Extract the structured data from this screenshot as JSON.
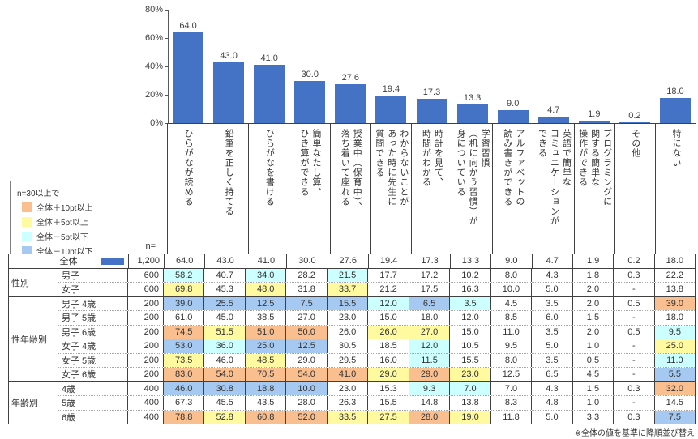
{
  "chart_data": {
    "type": "bar",
    "ylim": [
      0,
      80
    ],
    "ytick_labels_top_to_bottom": [
      "80%",
      "60%",
      "40%",
      "20%",
      "0%"
    ],
    "bar_color": "#4472C4",
    "grid": false,
    "categories": [
      "ひらがなが読める",
      "鉛筆を正しく持てる",
      "ひらがなを書ける",
      "簡単なたし算、\nひき算ができる",
      "授業中（保育中）、\n落ち着いて座れる",
      "わからないことが\nあった時に先生に\n質問できる",
      "時計を見て、\n時間がわかる",
      "学習習慣\n（机に向かう習慣）が\n身についている",
      "アルファベットの\n読み書きができる",
      "英語で簡単な\nコミュニケーションが\nできる",
      "プログラミングに\n関する簡単な\n操作ができる",
      "その他",
      "特にない"
    ],
    "values": [
      64.0,
      43.0,
      41.0,
      30.0,
      27.6,
      19.4,
      17.3,
      13.3,
      9.0,
      4.7,
      1.9,
      0.2,
      18.0
    ],
    "value_labels": [
      "64.0",
      "43.0",
      "41.0",
      "30.0",
      "27.6",
      "19.4",
      "17.3",
      "13.3",
      "9.0",
      "4.7",
      "1.9",
      "0.2",
      "18.0"
    ]
  },
  "legend": {
    "title": "n=30以上で",
    "items": [
      {
        "label": "全体＋10pt以上",
        "color": "#FABF8F",
        "code": "o"
      },
      {
        "label": "全体＋5pt以上",
        "color": "#FFF9A0",
        "code": "y"
      },
      {
        "label": "全体－5pt以下",
        "color": "#CCFFFF",
        "code": "c"
      },
      {
        "label": "全体－10pt以下",
        "color": "#A5C9F0",
        "code": "b"
      }
    ]
  },
  "highlight_colors": {
    "o": "#FABF8F",
    "y": "#FFF9A0",
    "c": "#CCFFFF",
    "b": "#A5C9F0"
  },
  "table": {
    "n_header": "n=",
    "groups": [
      {
        "label": "",
        "rows": [
          {
            "label": "全体",
            "n": "1,200",
            "swatch": true,
            "values": [
              "64.0",
              "43.0",
              "41.0",
              "30.0",
              "27.6",
              "19.4",
              "17.3",
              "13.3",
              "9.0",
              "4.7",
              "1.9",
              "0.2",
              "18.0"
            ],
            "hl": [
              "",
              "",
              "",
              "",
              "",
              "",
              "",
              "",
              "",
              "",
              "",
              "",
              ""
            ]
          }
        ]
      },
      {
        "label": "性別",
        "rows": [
          {
            "label": "男子",
            "n": "600",
            "values": [
              "58.2",
              "40.7",
              "34.0",
              "28.2",
              "21.5",
              "17.7",
              "17.2",
              "10.2",
              "8.0",
              "4.3",
              "1.8",
              "0.3",
              "22.2"
            ],
            "hl": [
              "c",
              "",
              "c",
              "",
              "c",
              "",
              "",
              "",
              "",
              "",
              "",
              "",
              ""
            ]
          },
          {
            "label": "女子",
            "n": "600",
            "values": [
              "69.8",
              "45.3",
              "48.0",
              "31.8",
              "33.7",
              "21.2",
              "17.5",
              "16.3",
              "10.0",
              "5.0",
              "2.0",
              "-",
              "13.8"
            ],
            "hl": [
              "y",
              "",
              "y",
              "",
              "y",
              "",
              "",
              "",
              "",
              "",
              "",
              "",
              ""
            ]
          }
        ]
      },
      {
        "label": "性年齢別",
        "rows": [
          {
            "label": "男子 4歳",
            "n": "200",
            "values": [
              "39.0",
              "25.5",
              "12.5",
              "7.5",
              "15.5",
              "12.0",
              "6.5",
              "3.5",
              "4.5",
              "3.5",
              "2.0",
              "0.5",
              "39.0"
            ],
            "hl": [
              "b",
              "b",
              "b",
              "b",
              "b",
              "c",
              "b",
              "c",
              "",
              "",
              "",
              "",
              "o"
            ]
          },
          {
            "label": "男子 5歳",
            "n": "200",
            "values": [
              "61.0",
              "45.0",
              "38.5",
              "27.0",
              "23.0",
              "15.0",
              "18.0",
              "12.0",
              "8.5",
              "6.0",
              "1.5",
              "-",
              "18.0"
            ],
            "hl": [
              "",
              "",
              "",
              "",
              "",
              "",
              "",
              "",
              "",
              "",
              "",
              "",
              ""
            ]
          },
          {
            "label": "男子 6歳",
            "n": "200",
            "values": [
              "74.5",
              "51.5",
              "51.0",
              "50.0",
              "26.0",
              "26.0",
              "27.0",
              "15.0",
              "11.0",
              "3.5",
              "2.0",
              "0.5",
              "9.5"
            ],
            "hl": [
              "o",
              "y",
              "o",
              "o",
              "",
              "y",
              "y",
              "",
              "",
              "",
              "",
              "",
              "c"
            ]
          },
          {
            "label": "女子 4歳",
            "n": "200",
            "values": [
              "53.0",
              "36.0",
              "25.0",
              "12.5",
              "30.5",
              "18.5",
              "12.0",
              "10.5",
              "9.5",
              "5.0",
              "1.0",
              "-",
              "25.0"
            ],
            "hl": [
              "b",
              "c",
              "b",
              "b",
              "",
              "",
              "c",
              "",
              "",
              "",
              "",
              "",
              "y"
            ]
          },
          {
            "label": "女子 5歳",
            "n": "200",
            "values": [
              "73.5",
              "46.0",
              "48.5",
              "29.0",
              "29.5",
              "16.0",
              "11.5",
              "15.5",
              "8.0",
              "3.5",
              "0.5",
              "-",
              "11.0"
            ],
            "hl": [
              "y",
              "",
              "y",
              "",
              "",
              "",
              "c",
              "",
              "",
              "",
              "",
              "",
              "c"
            ]
          },
          {
            "label": "女子 6歳",
            "n": "200",
            "values": [
              "83.0",
              "54.0",
              "70.5",
              "54.0",
              "41.0",
              "29.0",
              "29.0",
              "23.0",
              "12.5",
              "6.5",
              "4.5",
              "-",
              "5.5"
            ],
            "hl": [
              "o",
              "o",
              "o",
              "o",
              "o",
              "y",
              "o",
              "y",
              "",
              "",
              "",
              "",
              "b"
            ]
          }
        ]
      },
      {
        "label": "年齢別",
        "rows": [
          {
            "label": "4歳",
            "n": "400",
            "values": [
              "46.0",
              "30.8",
              "18.8",
              "10.0",
              "23.0",
              "15.3",
              "9.3",
              "7.0",
              "7.0",
              "4.3",
              "1.5",
              "0.3",
              "32.0"
            ],
            "hl": [
              "b",
              "b",
              "b",
              "b",
              "",
              "",
              "c",
              "c",
              "",
              "",
              "",
              "",
              "o"
            ]
          },
          {
            "label": "5歳",
            "n": "400",
            "values": [
              "67.3",
              "45.5",
              "43.5",
              "28.0",
              "26.3",
              "15.5",
              "14.8",
              "13.8",
              "8.3",
              "4.8",
              "1.0",
              "-",
              "14.5"
            ],
            "hl": [
              "",
              "",
              "",
              "",
              "",
              "",
              "",
              "",
              "",
              "",
              "",
              "",
              ""
            ]
          },
          {
            "label": "6歳",
            "n": "400",
            "values": [
              "78.8",
              "52.8",
              "60.8",
              "52.0",
              "33.5",
              "27.5",
              "28.0",
              "19.0",
              "11.8",
              "5.0",
              "3.3",
              "0.3",
              "7.5"
            ],
            "hl": [
              "o",
              "y",
              "o",
              "o",
              "y",
              "y",
              "o",
              "y",
              "",
              "",
              "",
              "",
              "b"
            ]
          }
        ]
      }
    ]
  },
  "footnote": "※全体の値を基準に降順並び替え"
}
